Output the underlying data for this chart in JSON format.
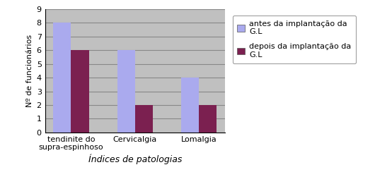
{
  "categories": [
    "tendinite do\nsupra-espinhoso",
    "Cervicalgia",
    "Lomalgia"
  ],
  "series": [
    {
      "label": "antes da implantação da\nG.L",
      "values": [
        8,
        6,
        4
      ],
      "color": "#aaaaee"
    },
    {
      "label": "depois da implantação da\nG.L",
      "values": [
        6,
        2,
        2
      ],
      "color": "#7b2050"
    }
  ],
  "xlabel": "Índices de patologias",
  "ylabel": "Nº de funcionários",
  "ylim": [
    0,
    9
  ],
  "yticks": [
    0,
    1,
    2,
    3,
    4,
    5,
    6,
    7,
    8,
    9
  ],
  "plot_bg_color": "#c0c0c0",
  "fig_bg_color": "#ffffff",
  "bar_width": 0.28,
  "grid_color": "#888888",
  "xlabel_fontsize": 9,
  "ylabel_fontsize": 8,
  "tick_fontsize": 8,
  "legend_fontsize": 8
}
